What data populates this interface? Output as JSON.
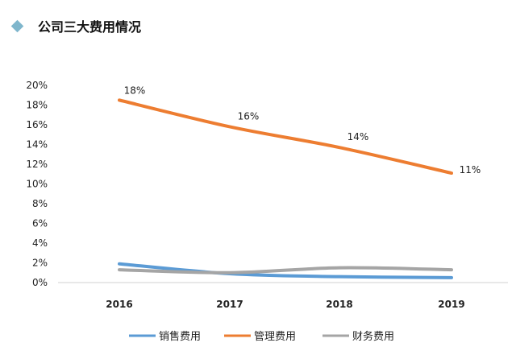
{
  "header": {
    "title": "公司三大费用情况",
    "marker_icon": "diamond-icon",
    "marker_color": "#7fb6cc"
  },
  "chart_data": {
    "type": "line",
    "title": "公司三大费用情况",
    "xlabel": "",
    "ylabel": "",
    "categories": [
      "2016",
      "2017",
      "2018",
      "2019"
    ],
    "ylim": [
      0,
      0.2
    ],
    "yticks": [
      "0%",
      "2%",
      "4%",
      "6%",
      "8%",
      "10%",
      "12%",
      "14%",
      "16%",
      "18%",
      "20%"
    ],
    "grid": false,
    "legend_position": "bottom",
    "series": [
      {
        "name": "销售费用",
        "color": "#5b9bd5",
        "values": [
          0.019,
          0.009,
          0.006,
          0.005
        ],
        "labels": null
      },
      {
        "name": "管理费用",
        "color": "#ed7d31",
        "values": [
          0.185,
          0.158,
          0.137,
          0.111
        ],
        "labels": [
          "18%",
          "16%",
          "14%",
          "11%"
        ]
      },
      {
        "name": "财务费用",
        "color": "#a5a5a5",
        "values": [
          0.013,
          0.01,
          0.015,
          0.013
        ],
        "labels": null
      }
    ]
  }
}
